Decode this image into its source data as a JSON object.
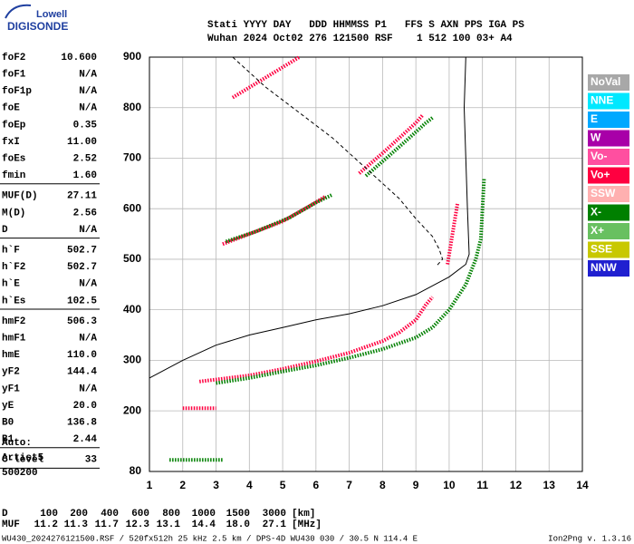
{
  "logo": {
    "line1": "Lowell",
    "line2": "DIGISONDE"
  },
  "header": {
    "columns": "Stati YYYY DAY   DDD HHMMSS P1   FFS S AXN PPS IGA PS",
    "values": "Wuhan 2024 Oct02 276 121500 RSF    1 512 100 03+ A4"
  },
  "params": [
    [
      [
        "foF2",
        "10.600"
      ],
      [
        "foF1",
        "N/A"
      ],
      [
        "foF1p",
        "N/A"
      ],
      [
        "foE",
        "N/A"
      ],
      [
        "foEp",
        "0.35"
      ],
      [
        "fxI",
        "11.00"
      ],
      [
        "foEs",
        "2.52"
      ],
      [
        "fmin",
        "1.60"
      ]
    ],
    [
      [
        "MUF(D)",
        "27.11"
      ],
      [
        "M(D)",
        "2.56"
      ],
      [
        "D",
        "N/A"
      ]
    ],
    [
      [
        "h`F",
        "502.7"
      ],
      [
        "h`F2",
        "502.7"
      ],
      [
        "h`E",
        "N/A"
      ],
      [
        "h`Es",
        "102.5"
      ]
    ],
    [
      [
        "hmF2",
        "506.3"
      ],
      [
        "hmF1",
        "N/A"
      ],
      [
        "hmE",
        "110.0"
      ],
      [
        "yF2",
        "144.4"
      ],
      [
        "yF1",
        "N/A"
      ],
      [
        "yE",
        "20.0"
      ],
      [
        "B0",
        "136.8"
      ],
      [
        "B1",
        "2.44"
      ]
    ],
    [
      [
        "C-level",
        "33"
      ]
    ]
  ],
  "auto": [
    "Auto:",
    "Artist5",
    "500200"
  ],
  "muf_table": {
    "d_label": "D",
    "distances": [
      "100",
      "200",
      "400",
      "600",
      "800",
      "1000",
      "1500",
      "3000"
    ],
    "d_unit": "[km]",
    "muf_label": "MUF",
    "mufs": [
      "11.2",
      "11.3",
      "11.7",
      "12.3",
      "13.1",
      "14.4",
      "18.0",
      "27.1"
    ],
    "muf_unit": "[MHz]"
  },
  "footer": {
    "file": "WU430_2024276121500.RSF / 520fx512h 25 kHz 2.5 km / DPS-4D WU430 030 / 30.5 N 114.4 E",
    "version": "Ion2Png v. 1.3.16"
  },
  "legend": [
    {
      "name": "NoVal",
      "color": "#a8a8a8"
    },
    {
      "name": "NNE",
      "color": "#00e8ff"
    },
    {
      "name": "E",
      "color": "#00a8ff"
    },
    {
      "name": "W",
      "color": "#a800a8"
    },
    {
      "name": "Vo-",
      "color": "#ff4fa0"
    },
    {
      "name": "Vo+",
      "color": "#ff0040"
    },
    {
      "name": "SSW",
      "color": "#ffb0b0"
    },
    {
      "name": "X-",
      "color": "#008000"
    },
    {
      "name": "X+",
      "color": "#68c060"
    },
    {
      "name": "SSE",
      "color": "#c8c800"
    },
    {
      "name": "NNW",
      "color": "#2020d0"
    }
  ],
  "chart_data": {
    "type": "ionogram",
    "xlim": [
      1,
      14
    ],
    "ylim": [
      80,
      900
    ],
    "xticks": [
      1,
      2,
      3,
      4,
      5,
      6,
      7,
      8,
      9,
      10,
      11,
      12,
      13,
      14
    ],
    "yticks": [
      80,
      200,
      300,
      400,
      500,
      600,
      700,
      800,
      900
    ],
    "grid": true,
    "series": [
      {
        "color": "#ff0040",
        "style": "dots",
        "x": [
          2.5,
          3,
          4,
          5,
          6,
          7,
          8,
          8.5,
          9,
          9.3,
          9.5
        ],
        "values": [
          258,
          262,
          270,
          283,
          298,
          315,
          338,
          355,
          380,
          410,
          425
        ]
      },
      {
        "color": "#008000",
        "style": "dots",
        "x": [
          3,
          4,
          5,
          6,
          7,
          8,
          9,
          9.5,
          10,
          10.5,
          10.8,
          10.95,
          11,
          11.05
        ],
        "values": [
          255,
          265,
          278,
          290,
          305,
          322,
          345,
          365,
          400,
          450,
          500,
          540,
          600,
          660
        ]
      },
      {
        "color": "#ff0040",
        "style": "dots",
        "x": [
          9.95,
          10.05,
          10.15,
          10.25
        ],
        "values": [
          490,
          530,
          570,
          610
        ]
      },
      {
        "color": "#ff0040",
        "style": "dots",
        "x": [
          3.2,
          4,
          5,
          5.8,
          6.3
        ],
        "values": [
          530,
          550,
          575,
          605,
          625
        ]
      },
      {
        "color": "#008000",
        "style": "dots",
        "x": [
          3.3,
          4.2,
          5.2,
          6,
          6.5
        ],
        "values": [
          535,
          555,
          582,
          612,
          628
        ]
      },
      {
        "color": "#ff0040",
        "style": "dots",
        "x": [
          7.3,
          8,
          8.5,
          9,
          9.2
        ],
        "values": [
          670,
          710,
          740,
          770,
          785
        ]
      },
      {
        "color": "#008000",
        "style": "dots",
        "x": [
          7.5,
          8.2,
          8.8,
          9.3,
          9.5
        ],
        "values": [
          665,
          705,
          740,
          770,
          780
        ]
      },
      {
        "color": "#ff0040",
        "style": "dots",
        "x": [
          3.5,
          4.5,
          5.5
        ],
        "values": [
          820,
          860,
          900
        ]
      },
      {
        "color": "#ff0040",
        "style": "dots",
        "x": [
          2,
          3
        ],
        "values": [
          205,
          205
        ]
      },
      {
        "color": "#008000",
        "style": "dots",
        "x": [
          1.6,
          3.2
        ],
        "values": [
          103,
          103
        ]
      },
      {
        "color": "#000000",
        "style": "line",
        "x": [
          1,
          2,
          3,
          4,
          5,
          6,
          7,
          8,
          9,
          10,
          10.5,
          10.6,
          10.55,
          10.5,
          10.45,
          10.5
        ],
        "values": [
          265,
          300,
          330,
          350,
          365,
          380,
          392,
          408,
          430,
          465,
          490,
          510,
          600,
          700,
          800,
          900
        ]
      },
      {
        "color": "#000000",
        "style": "dashed",
        "x": [
          3.5,
          4.5,
          5.5,
          6.5,
          7.5,
          8.5,
          9,
          9.5,
          9.7,
          9.8,
          9.6
        ],
        "values": [
          900,
          840,
          790,
          740,
          680,
          620,
          580,
          545,
          520,
          500,
          485
        ]
      }
    ]
  }
}
